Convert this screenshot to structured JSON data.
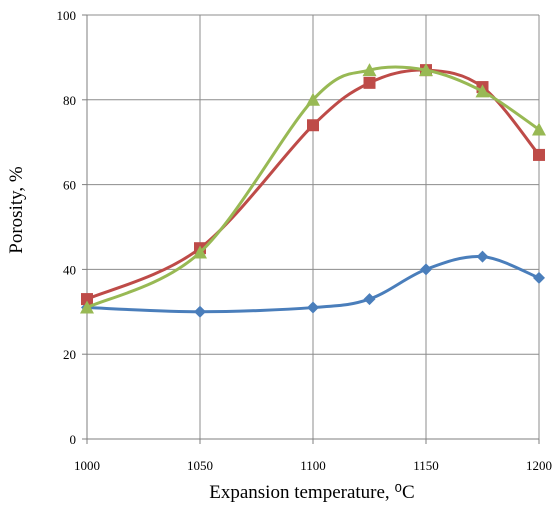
{
  "chart_data": {
    "type": "line",
    "xlabel": "Expansion temperature, ⁰C",
    "ylabel": "Porosity, %",
    "xlim": [
      1000,
      1200
    ],
    "ylim": [
      0,
      100
    ],
    "x_ticks": [
      "1000",
      "1050",
      "1100",
      "1150",
      "1200"
    ],
    "y_ticks": [
      "0",
      "20",
      "40",
      "60",
      "80",
      "100"
    ],
    "grid": true,
    "legend": "none",
    "series": [
      {
        "color": "#4a7ebb",
        "marker": "diamond",
        "x": [
          1000,
          1050,
          1100,
          1125,
          1150,
          1175,
          1200
        ],
        "y": [
          31,
          30,
          31,
          33,
          40,
          43,
          38
        ]
      },
      {
        "color": "#be4b48",
        "marker": "square",
        "x": [
          1000,
          1050,
          1100,
          1125,
          1150,
          1175,
          1200
        ],
        "y": [
          33,
          45,
          74,
          84,
          87,
          83,
          67
        ]
      },
      {
        "color": "#98b954",
        "marker": "triangle",
        "x": [
          1000,
          1050,
          1100,
          1125,
          1150,
          1175,
          1200
        ],
        "y": [
          31,
          44,
          80,
          87,
          87,
          82,
          73
        ]
      }
    ]
  }
}
